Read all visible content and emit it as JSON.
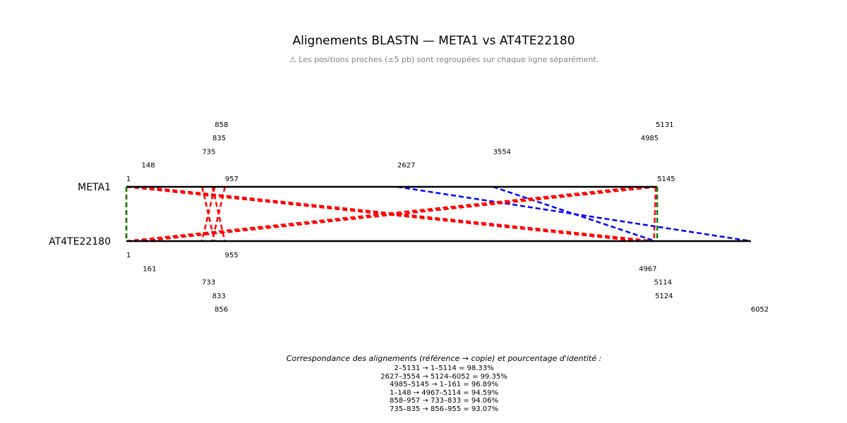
{
  "title": "Alignements BLASTN — META1 vs AT4TE22180",
  "subtitle": "⚠ Les positions proches (±5 pb) sont regroupées sur chaque ligne séparément.",
  "colors": {
    "sequence_line": "#000000",
    "forward_alignment": "#ff0000",
    "reverse_alignment": "#0000ff",
    "boundary": "#008000"
  },
  "chart_data": {
    "type": "alignment",
    "query": {
      "name": "META1",
      "start": 1,
      "end": 5145
    },
    "subject": {
      "name": "AT4TE22180",
      "start": 1,
      "end": 6052
    },
    "query_ticks": [
      {
        "label": "1",
        "pos": 1,
        "level": 0
      },
      {
        "label": "957",
        "pos": 957,
        "level": 0
      },
      {
        "label": "5145",
        "pos": 5145,
        "level": 0
      },
      {
        "label": "148",
        "pos": 148,
        "level": 1
      },
      {
        "label": "2627",
        "pos": 2627,
        "level": 1
      },
      {
        "label": "735",
        "pos": 735,
        "level": 2
      },
      {
        "label": "3554",
        "pos": 3554,
        "level": 2
      },
      {
        "label": "835",
        "pos": 835,
        "level": 3
      },
      {
        "label": "4985",
        "pos": 4985,
        "level": 3
      },
      {
        "label": "858",
        "pos": 858,
        "level": 4
      },
      {
        "label": "5131",
        "pos": 5131,
        "level": 4
      }
    ],
    "subject_ticks": [
      {
        "label": "1",
        "pos": 1,
        "level": 0
      },
      {
        "label": "955",
        "pos": 955,
        "level": 0
      },
      {
        "label": "161",
        "pos": 161,
        "level": 1
      },
      {
        "label": "4967",
        "pos": 4967,
        "level": 1
      },
      {
        "label": "733",
        "pos": 733,
        "level": 2
      },
      {
        "label": "5114",
        "pos": 5114,
        "level": 2
      },
      {
        "label": "833",
        "pos": 833,
        "level": 3
      },
      {
        "label": "5124",
        "pos": 5124,
        "level": 3
      },
      {
        "label": "856",
        "pos": 856,
        "level": 4
      },
      {
        "label": "6052",
        "pos": 6052,
        "level": 4
      }
    ],
    "alignments": [
      {
        "q_start": 2,
        "q_end": 5131,
        "s_start": 1,
        "s_end": 5114,
        "identity": 98.33,
        "strand": "forward"
      },
      {
        "q_start": 2627,
        "q_end": 3554,
        "s_start": 5124,
        "s_end": 6052,
        "identity": 99.35,
        "strand": "reverse"
      },
      {
        "q_start": 4985,
        "q_end": 5145,
        "s_start": 1,
        "s_end": 161,
        "identity": 96.89,
        "strand": "forward"
      },
      {
        "q_start": 1,
        "q_end": 148,
        "s_start": 4967,
        "s_end": 5114,
        "identity": 94.59,
        "strand": "forward"
      },
      {
        "q_start": 858,
        "q_end": 957,
        "s_start": 733,
        "s_end": 833,
        "identity": 94.06,
        "strand": "forward"
      },
      {
        "q_start": 735,
        "q_end": 835,
        "s_start": 856,
        "s_end": 955,
        "identity": 93.07,
        "strand": "forward"
      }
    ]
  },
  "legend": {
    "title": "Correspondance des alignements (référence → copie) et pourcentage d'identité :",
    "items": [
      "2–5131 → 1–5114 = 98.33%",
      "2627–3554 → 5124–6052 = 99.35%",
      "4985–5145 → 1–161 = 96.89%",
      "1–148 → 4967–5114 = 94.59%",
      "858–957 → 733–833 = 94.06%",
      "735–835 → 856–955 = 93.07%"
    ]
  }
}
